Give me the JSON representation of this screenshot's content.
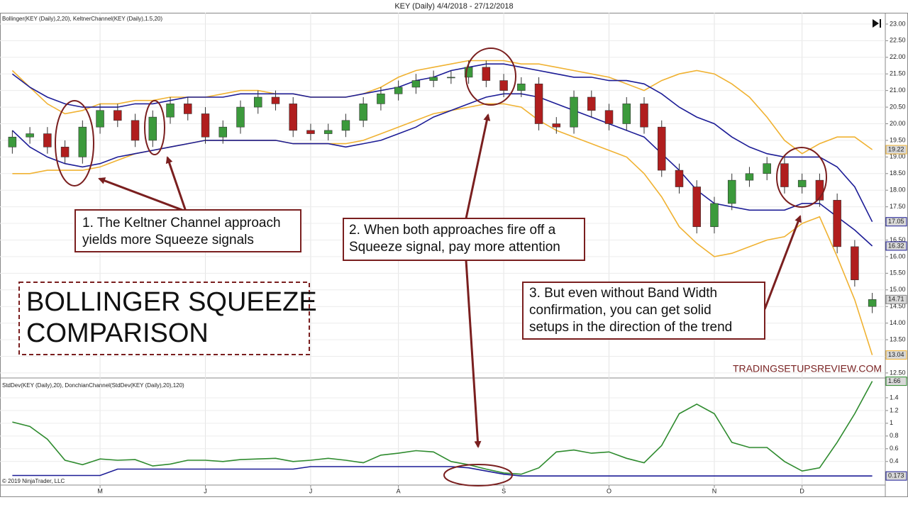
{
  "header": {
    "title": "KEY (Daily)  4/4/2018 - 27/12/2018"
  },
  "chart_data": [
    {
      "type": "candlestick",
      "title": "Bollinger(KEY (Daily),2,20), KeltnerChannel(KEY (Daily),1.5,20)",
      "open": [
        19.3,
        19.6,
        19.7,
        19.3,
        19.0,
        19.9,
        20.4,
        20.1,
        19.5,
        20.2,
        20.6,
        20.3,
        19.6,
        19.9,
        20.5,
        20.8,
        20.6,
        19.8,
        19.7,
        19.8,
        20.1,
        20.6,
        20.9,
        21.1,
        21.3,
        21.4,
        21.4,
        21.7,
        21.3,
        21.0,
        21.2,
        20.0,
        19.9,
        20.8,
        20.4,
        20.0,
        20.6,
        19.9,
        18.6,
        18.1,
        16.9,
        17.6,
        18.3,
        18.5,
        18.8,
        18.1,
        18.3,
        17.7,
        16.3,
        14.5
      ],
      "high": [
        19.8,
        19.9,
        19.9,
        19.5,
        20.1,
        20.6,
        20.6,
        20.3,
        20.4,
        20.8,
        20.8,
        20.5,
        20.1,
        20.7,
        21.0,
        21.0,
        20.8,
        20.0,
        20.0,
        20.3,
        20.8,
        21.1,
        21.3,
        21.5,
        21.6,
        21.6,
        21.9,
        21.9,
        21.5,
        21.4,
        21.4,
        20.2,
        21.0,
        21.0,
        20.6,
        20.8,
        20.8,
        20.1,
        18.8,
        18.3,
        17.8,
        18.5,
        18.7,
        19.0,
        19.0,
        18.5,
        18.5,
        17.9,
        16.5,
        14.91
      ],
      "low": [
        19.1,
        19.4,
        19.1,
        18.8,
        18.8,
        19.7,
        19.9,
        19.3,
        19.3,
        20.0,
        20.1,
        19.4,
        19.4,
        19.7,
        20.3,
        20.4,
        19.6,
        19.5,
        19.5,
        19.6,
        19.9,
        20.4,
        20.7,
        20.9,
        21.1,
        21.2,
        21.2,
        21.1,
        20.8,
        20.8,
        19.8,
        19.7,
        19.7,
        20.2,
        19.8,
        19.8,
        19.7,
        18.4,
        17.9,
        16.7,
        16.7,
        17.4,
        18.1,
        18.3,
        17.9,
        17.9,
        17.5,
        16.1,
        15.1,
        14.3
      ],
      "close": [
        19.6,
        19.7,
        19.3,
        19.0,
        19.9,
        20.4,
        20.1,
        19.5,
        20.2,
        20.6,
        20.3,
        19.6,
        19.9,
        20.5,
        20.8,
        20.6,
        19.8,
        19.7,
        19.8,
        20.1,
        20.6,
        20.9,
        21.1,
        21.3,
        21.4,
        21.4,
        21.7,
        21.3,
        21.0,
        21.2,
        20.0,
        19.9,
        20.8,
        20.4,
        20.0,
        20.6,
        19.9,
        18.6,
        18.1,
        16.9,
        17.6,
        18.3,
        18.5,
        18.8,
        18.1,
        18.3,
        17.7,
        16.3,
        15.3,
        14.71
      ],
      "up_color": "#3c9a3c",
      "down_color": "#b01e1e",
      "series": [
        {
          "color": "#f0b232",
          "values": [
            21.6,
            21.1,
            20.6,
            20.3,
            20.4,
            20.6,
            20.6,
            20.7,
            20.7,
            20.8,
            20.8,
            20.8,
            20.9,
            21.0,
            21.0,
            20.9,
            20.9,
            20.8,
            20.8,
            20.8,
            20.9,
            21.1,
            21.4,
            21.6,
            21.7,
            21.8,
            21.9,
            21.9,
            21.9,
            21.8,
            21.8,
            21.7,
            21.6,
            21.5,
            21.4,
            21.2,
            21.0,
            21.3,
            21.5,
            21.6,
            21.5,
            21.2,
            20.8,
            20.2,
            19.5,
            19.1,
            19.4,
            19.6,
            19.6,
            19.22
          ]
        },
        {
          "color": "#f0b232",
          "values": [
            18.5,
            18.5,
            18.6,
            18.6,
            18.6,
            18.7,
            18.9,
            19.1,
            19.2,
            19.3,
            19.4,
            19.5,
            19.5,
            19.5,
            19.5,
            19.5,
            19.4,
            19.4,
            19.4,
            19.4,
            19.5,
            19.7,
            19.9,
            20.1,
            20.3,
            20.4,
            20.5,
            20.6,
            20.6,
            20.5,
            20.1,
            19.8,
            19.6,
            19.4,
            19.2,
            19.0,
            18.5,
            17.8,
            16.9,
            16.4,
            16.0,
            16.1,
            16.3,
            16.5,
            16.6,
            17.0,
            17.2,
            16.0,
            14.7,
            13.04
          ]
        },
        {
          "color": "#1c1c96",
          "values": [
            21.5,
            21.1,
            20.8,
            20.6,
            20.5,
            20.5,
            20.5,
            20.6,
            20.6,
            20.7,
            20.8,
            20.8,
            20.8,
            20.9,
            20.9,
            20.9,
            20.9,
            20.8,
            20.8,
            20.8,
            20.9,
            21.0,
            21.1,
            21.3,
            21.4,
            21.6,
            21.7,
            21.8,
            21.8,
            21.7,
            21.6,
            21.5,
            21.4,
            21.4,
            21.3,
            21.3,
            21.2,
            20.9,
            20.5,
            20.2,
            20.0,
            19.6,
            19.3,
            19.1,
            19.0,
            19.0,
            19.0,
            18.7,
            18.1,
            17.05
          ]
        },
        {
          "color": "#1c1c96",
          "values": [
            19.8,
            19.3,
            19.0,
            18.8,
            18.7,
            18.8,
            19.0,
            19.1,
            19.2,
            19.3,
            19.4,
            19.5,
            19.5,
            19.5,
            19.5,
            19.5,
            19.4,
            19.4,
            19.4,
            19.3,
            19.4,
            19.5,
            19.7,
            19.9,
            20.2,
            20.4,
            20.6,
            20.8,
            20.9,
            20.9,
            20.8,
            20.6,
            20.4,
            20.2,
            20.0,
            19.8,
            19.6,
            19.1,
            18.6,
            18.0,
            17.6,
            17.5,
            17.4,
            17.4,
            17.4,
            17.6,
            17.6,
            17.2,
            16.8,
            16.32
          ]
        }
      ],
      "ylim": [
        12.37,
        23.34
      ],
      "yticks": [
        {
          "value": 12.5,
          "label": "12.50"
        },
        {
          "value": 13,
          "label": "13.00"
        },
        {
          "value": 13.5,
          "label": "13.50"
        },
        {
          "value": 14,
          "label": "14.00"
        },
        {
          "value": 14.5,
          "label": "14.50"
        },
        {
          "value": 15,
          "label": "15.00"
        },
        {
          "value": 15.5,
          "label": "15.50"
        },
        {
          "value": 16,
          "label": "16.00"
        },
        {
          "value": 16.5,
          "label": "16.50"
        },
        {
          "value": 17,
          "label": "17.00"
        },
        {
          "value": 17.5,
          "label": "17.50"
        },
        {
          "value": 18,
          "label": "18.00"
        },
        {
          "value": 18.5,
          "label": "18.50"
        },
        {
          "value": 19,
          "label": "19.00"
        },
        {
          "value": 19.5,
          "label": "19.50"
        },
        {
          "value": 20,
          "label": "20.00"
        },
        {
          "value": 20.5,
          "label": "20.50"
        },
        {
          "value": 21,
          "label": "21.00"
        },
        {
          "value": 21.5,
          "label": "21.50"
        },
        {
          "value": 22,
          "label": "22.00"
        },
        {
          "value": 22.5,
          "label": "22.50"
        },
        {
          "value": 23,
          "label": "23.00"
        }
      ],
      "grid": true
    },
    {
      "type": "line",
      "title": "StdDev(KEY (Daily),20), DonchianChannel(StdDev(KEY (Daily),20),120)",
      "categories": [
        null,
        null,
        null,
        null,
        null,
        "M",
        null,
        null,
        null,
        null,
        null,
        "J",
        null,
        null,
        null,
        null,
        null,
        "J",
        null,
        null,
        null,
        null,
        "A",
        null,
        null,
        null,
        null,
        null,
        "S",
        null,
        null,
        null,
        null,
        null,
        "O",
        null,
        null,
        null,
        null,
        null,
        "N",
        null,
        null,
        null,
        null,
        "D",
        null,
        null,
        null,
        null
      ],
      "series": [
        {
          "color": "#2e8b2e",
          "values": [
            1.02,
            0.95,
            0.75,
            0.42,
            0.35,
            0.44,
            0.42,
            0.43,
            0.33,
            0.36,
            0.42,
            0.42,
            0.4,
            0.43,
            0.44,
            0.45,
            0.4,
            0.42,
            0.45,
            0.42,
            0.38,
            0.5,
            0.53,
            0.57,
            0.55,
            0.4,
            0.35,
            0.28,
            0.22,
            0.2,
            0.3,
            0.55,
            0.58,
            0.53,
            0.55,
            0.45,
            0.38,
            0.65,
            1.15,
            1.3,
            1.15,
            0.7,
            0.62,
            0.62,
            0.4,
            0.25,
            0.3,
            0.7,
            1.15,
            1.66
          ]
        },
        {
          "color": "#1c1c96",
          "values": [
            0.18,
            0.18,
            0.18,
            0.18,
            0.18,
            0.18,
            0.28,
            0.28,
            0.28,
            0.28,
            0.28,
            0.28,
            0.28,
            0.28,
            0.28,
            0.28,
            0.28,
            0.32,
            0.32,
            0.32,
            0.32,
            0.32,
            0.32,
            0.32,
            0.32,
            0.32,
            0.3,
            0.25,
            0.2,
            0.173,
            0.173,
            0.173,
            0.173,
            0.173,
            0.173,
            0.173,
            0.173,
            0.173,
            0.173,
            0.173,
            0.173,
            0.173,
            0.173,
            0.173,
            0.173,
            0.173,
            0.173,
            0.173,
            0.173,
            0.173
          ]
        }
      ],
      "ylim": [
        0.03,
        1.7
      ],
      "yticks": [
        1.4,
        1.2,
        1,
        0.8,
        0.6,
        0.4
      ],
      "grid": true
    }
  ],
  "annotations": [
    {
      "lines": [
        "1. The Keltner Channel approach",
        "yields more Squeeze signals"
      ]
    },
    {
      "lines": [
        "2. When both approaches fire off a",
        "Squeeze signal, pay more attention"
      ]
    },
    {
      "lines": [
        "3. But even without Band Width",
        "confirmation, you can get solid",
        "setups in the direction of the trend"
      ]
    }
  ],
  "big_title": {
    "lines": [
      "BOLLINGER SQUEEZE",
      "COMPARISON"
    ]
  },
  "watermark": "TRADINGSETUPSREVIEW.COM",
  "copyright": "© 2019 NinjaTrader, LLC"
}
